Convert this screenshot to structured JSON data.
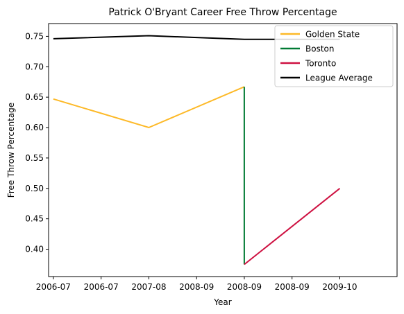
{
  "chart_data": {
    "type": "line",
    "title": "Patrick O'Bryant Career Free Throw Percentage",
    "xlabel": "Year",
    "ylabel": "Free Throw Percentage",
    "x_tick_labels": [
      "2006-07",
      "2006-07",
      "2007-08",
      "2008-09",
      "2008-09",
      "2008-09",
      "2009-10"
    ],
    "y_ticks": [
      0.4,
      0.45,
      0.5,
      0.55,
      0.6,
      0.65,
      0.7,
      0.75
    ],
    "y_tick_labels": [
      "0.40",
      "0.45",
      "0.50",
      "0.55",
      "0.60",
      "0.65",
      "0.70",
      "0.75"
    ],
    "xlim": [
      2006.45,
      2010.1
    ],
    "ylim": [
      0.355,
      0.771
    ],
    "legend_position": "top-right",
    "series": [
      {
        "name": "Golden State",
        "color": "#FDB927",
        "x": [
          2006.5,
          2007.5,
          2008.5
        ],
        "y": [
          0.647,
          0.6,
          0.667
        ]
      },
      {
        "name": "Boston",
        "color": "#007A33",
        "x": [
          2008.5,
          2008.5
        ],
        "y": [
          0.667,
          0.375
        ]
      },
      {
        "name": "Toronto",
        "color": "#CE1141",
        "x": [
          2008.5,
          2009.5
        ],
        "y": [
          0.375,
          0.5
        ]
      },
      {
        "name": "League Average",
        "color": "#000000",
        "x": [
          2006.5,
          2007.5,
          2008.5,
          2009.5
        ],
        "y": [
          0.746,
          0.751,
          0.745,
          0.745
        ]
      }
    ]
  }
}
